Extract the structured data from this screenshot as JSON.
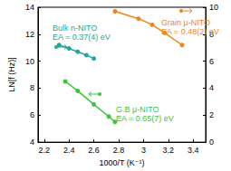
{
  "chart_data": {
    "type": "line",
    "x_label": "1000/T (K⁻¹)",
    "y_label": "LN[f (Hz)]",
    "xlim": [
      2.15,
      3.5
    ],
    "xticks": [
      2.2,
      2.4,
      2.6,
      2.8,
      3.0,
      3.2,
      3.4
    ],
    "ylim": [
      4,
      14
    ],
    "yticks": [
      4,
      6,
      8,
      10,
      12,
      14
    ],
    "y2lim": [
      0,
      10
    ],
    "y2ticks": [
      0,
      2,
      4,
      6,
      8,
      10
    ],
    "grid": false,
    "series": [
      {
        "name": "Bulk n-NITO",
        "annotation": "EA = 0.37(4) eV",
        "color": "#26a69a",
        "marker": "circle",
        "line_style": "solid",
        "axis": "y2",
        "x": [
          2.32,
          2.4,
          2.47,
          2.54,
          2.6
        ],
        "values": [
          7.2,
          6.95,
          6.7,
          6.45,
          6.2
        ]
      },
      {
        "name": "Grain μ-NITO",
        "annotation": "EA = 0.48(2) eV",
        "color": "#f0851c",
        "marker": "circle",
        "line_style": "solid",
        "axis": "y2",
        "x": [
          2.77,
          2.96,
          3.07,
          3.17,
          3.31
        ],
        "values": [
          9.7,
          9.15,
          8.7,
          8.1,
          7.2
        ]
      },
      {
        "name": "G.B μ-NITO",
        "annotation": "EA = 0.65(7) eV",
        "color": "#3cc43c",
        "marker": "circle",
        "line_style": "solid",
        "axis": "y",
        "x": [
          2.37,
          2.47,
          2.6,
          2.72,
          2.77
        ],
        "values": [
          8.5,
          7.8,
          6.8,
          5.9,
          5.5
        ]
      }
    ]
  }
}
